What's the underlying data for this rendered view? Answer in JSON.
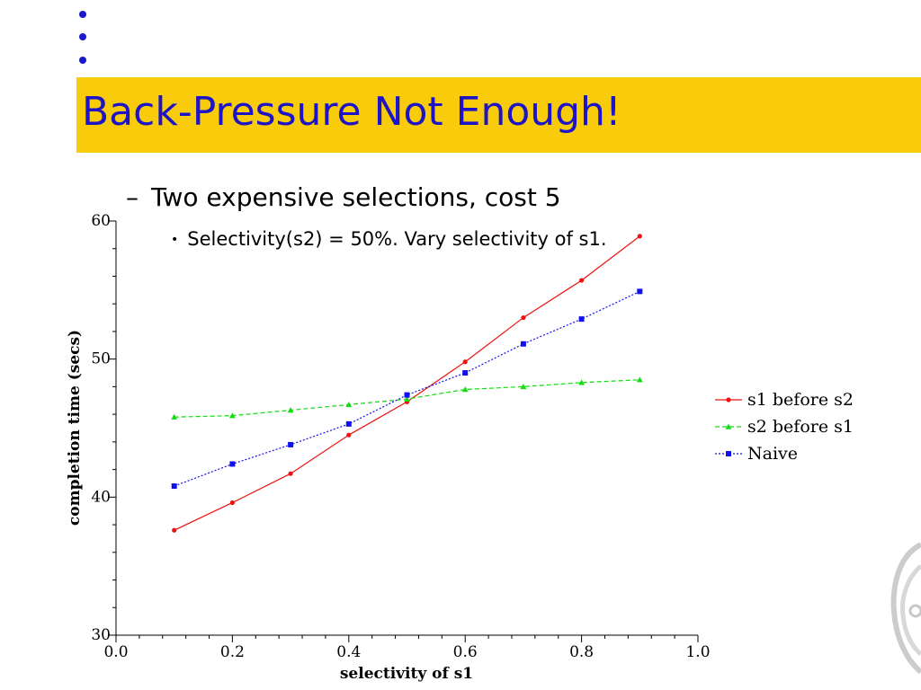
{
  "slide": {
    "title": "Back-Pressure Not Enough!",
    "bullets": [
      {
        "marker": "–",
        "text": "Two expensive selections, cost 5"
      },
      {
        "marker": "•",
        "text": "Selectivity(s2) = 50%.  Vary selectivity of s1."
      }
    ]
  },
  "colors": {
    "title_bar": "#f8cc0a",
    "title_text": "#1d14c8",
    "bullet_dots": "#1a1acc"
  },
  "chart_data": {
    "type": "line",
    "title": "",
    "xlabel": "selectivity of s1",
    "ylabel": "completion time (secs)",
    "xlim": [
      0.0,
      1.0
    ],
    "ylim": [
      30,
      60
    ],
    "x_ticks": [
      "0.0",
      "0.2",
      "0.4",
      "0.6",
      "0.8",
      "1.0"
    ],
    "y_ticks": [
      "30",
      "40",
      "50",
      "60"
    ],
    "x": [
      0.1,
      0.2,
      0.3,
      0.4,
      0.5,
      0.6,
      0.7,
      0.8,
      0.9
    ],
    "grid": false,
    "legend_position": "right",
    "series": [
      {
        "name": "s1 before s2",
        "color": "#ee1111",
        "line": "solid",
        "marker": "circle",
        "values": [
          37.6,
          39.6,
          41.7,
          44.5,
          46.9,
          49.8,
          53.0,
          55.7,
          58.9
        ]
      },
      {
        "name": "s2 before s1",
        "color": "#11dd11",
        "line": "dashed",
        "marker": "triangle",
        "values": [
          45.8,
          45.9,
          46.3,
          46.7,
          47.1,
          47.8,
          48.0,
          48.3,
          48.5
        ]
      },
      {
        "name": "Naive",
        "color": "#1111ee",
        "line": "dotted",
        "marker": "square",
        "values": [
          40.8,
          42.4,
          43.8,
          45.3,
          47.4,
          49.0,
          51.1,
          52.9,
          54.9
        ]
      }
    ]
  }
}
